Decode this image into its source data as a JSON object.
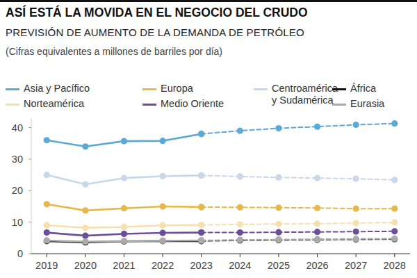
{
  "chart_data": {
    "type": "line",
    "title": "ASÍ ESTÁ LA MOVIDA EN EL NEGOCIO DEL CRUDO",
    "subtitle": "PREVISIÓN DE AUMENTO DE LA DEMANDA DE PETRÓLEO",
    "annotations": [
      "(Cifras equivalentes a millones de barriles por día)"
    ],
    "x": [
      2019,
      2020,
      2021,
      2022,
      2023,
      2024,
      2025,
      2026,
      2027,
      2028
    ],
    "xlim": [
      2018.6,
      2028.4
    ],
    "xticks": [
      2019,
      2020,
      2021,
      2022,
      2023,
      2024,
      2025,
      2026,
      2027,
      2028
    ],
    "ylim": [
      0,
      43
    ],
    "yticks": [
      0,
      10,
      20,
      30,
      40
    ],
    "grid": false,
    "series": [
      {
        "name": "Asia y Pacífico",
        "color": "#5aa9d6",
        "marker": "circle",
        "line_style": "solid",
        "values": [
          36,
          34,
          35.7,
          35.8,
          38,
          null,
          null,
          null,
          null,
          null
        ]
      },
      {
        "name": "Europa",
        "color": "#e6b84a",
        "marker": "circle",
        "line_style": "solid",
        "values": [
          15.7,
          13.7,
          14.4,
          15,
          14.8,
          null,
          null,
          null,
          null,
          null
        ]
      },
      {
        "name": "Centroamérica y Sudamérica",
        "color": "#c8d7ea",
        "marker": "circle",
        "line_style": "solid",
        "values": [
          25,
          22,
          24,
          24.6,
          24.8,
          null,
          null,
          null,
          null,
          null
        ]
      },
      {
        "name": "África",
        "color": "#111111",
        "marker": "circle",
        "line_style": "solid",
        "values": [
          4,
          3.6,
          3.9,
          4,
          4,
          null,
          null,
          null,
          null,
          null
        ]
      },
      {
        "name": "Norteamérica",
        "color": "#f6e0ad",
        "marker": "circle",
        "line_style": "solid",
        "values": [
          9,
          8.2,
          8.5,
          9,
          9.1,
          null,
          null,
          null,
          null,
          null
        ]
      },
      {
        "name": "Medio Oriente",
        "color": "#6c4f9c",
        "marker": "circle",
        "line_style": "solid",
        "values": [
          6.7,
          5.7,
          6.3,
          6.6,
          6.7,
          null,
          null,
          null,
          null,
          null
        ]
      },
      {
        "name": "Eurasia",
        "color": "#aaaaaa",
        "marker": "circle",
        "line_style": "solid",
        "values": [
          4.2,
          3.8,
          4,
          4.1,
          4.2,
          null,
          null,
          null,
          null,
          null
        ]
      },
      {
        "name": "Asia y Pacífico",
        "color": "#5aa9d6",
        "marker": "circle",
        "line_style": "dashed",
        "values": [
          null,
          null,
          null,
          null,
          38,
          39,
          39.8,
          40.3,
          40.9,
          41.3
        ]
      },
      {
        "name": "Europa",
        "color": "#e6b84a",
        "marker": "circle",
        "line_style": "dashed",
        "values": [
          null,
          null,
          null,
          null,
          14.8,
          14.7,
          14.6,
          14.5,
          14.3,
          14.3
        ]
      },
      {
        "name": "Centroamérica y Sudamérica",
        "color": "#c8d7ea",
        "marker": "circle",
        "line_style": "dashed",
        "values": [
          null,
          null,
          null,
          null,
          24.8,
          24.5,
          24.2,
          24,
          23.8,
          23.4
        ]
      },
      {
        "name": "África",
        "color": "#555555",
        "marker": "circle",
        "line_style": "dashed",
        "values": [
          null,
          null,
          null,
          null,
          4,
          4.2,
          4.3,
          4.4,
          4.5,
          4.6
        ]
      },
      {
        "name": "Norteamérica",
        "color": "#f6e0ad",
        "marker": "circle",
        "line_style": "dashed",
        "values": [
          null,
          null,
          null,
          null,
          9.1,
          9.3,
          9.4,
          9.5,
          9.7,
          9.9
        ]
      },
      {
        "name": "Medio Oriente",
        "color": "#6c4f9c",
        "marker": "circle",
        "line_style": "dashed",
        "values": [
          null,
          null,
          null,
          null,
          6.7,
          6.7,
          6.8,
          6.9,
          7,
          7.1
        ]
      },
      {
        "name": "Eurasia",
        "color": "#aaaaaa",
        "marker": "circle",
        "line_style": "dashed",
        "values": [
          null,
          null,
          null,
          null,
          4.2,
          4.4,
          4.5,
          4.6,
          4.7,
          4.8
        ]
      }
    ]
  }
}
